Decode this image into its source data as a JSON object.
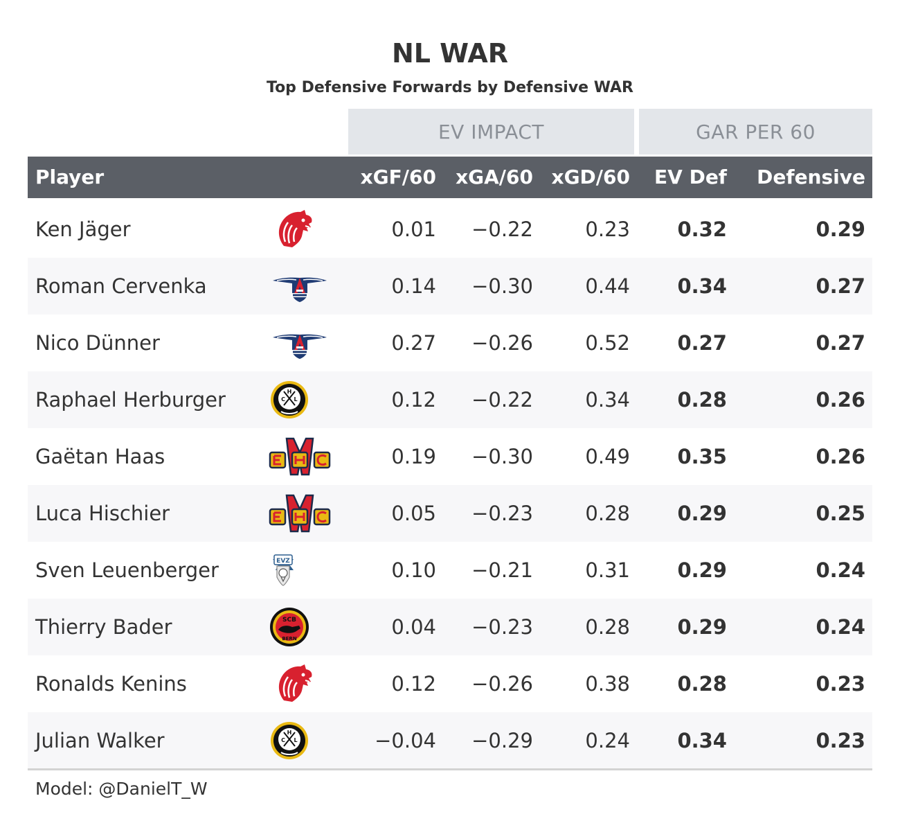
{
  "chart_data": {
    "type": "table",
    "title": "NL WAR",
    "subtitle": "Top Defensive Forwards by Defensive WAR",
    "spanners": [
      "EV IMPACT",
      "GAR PER 60"
    ],
    "columns": [
      "Player",
      "xGF/60",
      "xGA/60",
      "xGD/60",
      "EV Def",
      "Defensive"
    ],
    "rows": [
      {
        "player": "Ken Jäger",
        "team_logo": "lausanne-lion-logo",
        "xgf": "0.01",
        "xga": "−0.22",
        "xgd": "0.23",
        "ev_def": "0.32",
        "defensive": "0.29"
      },
      {
        "player": "Roman Cervenka",
        "team_logo": "rapperswil-lakers-logo",
        "xgf": "0.14",
        "xga": "−0.30",
        "xgd": "0.44",
        "ev_def": "0.34",
        "defensive": "0.27"
      },
      {
        "player": "Nico Dünner",
        "team_logo": "rapperswil-lakers-logo",
        "xgf": "0.27",
        "xga": "−0.26",
        "xgd": "0.52",
        "ev_def": "0.27",
        "defensive": "0.27"
      },
      {
        "player": "Raphael Herburger",
        "team_logo": "hc-lugano-logo",
        "xgf": "0.12",
        "xga": "−0.22",
        "xgd": "0.34",
        "ev_def": "0.28",
        "defensive": "0.26"
      },
      {
        "player": "Gaëtan Haas",
        "team_logo": "ehc-biel-logo",
        "xgf": "0.19",
        "xga": "−0.30",
        "xgd": "0.49",
        "ev_def": "0.35",
        "defensive": "0.26"
      },
      {
        "player": "Luca Hischier",
        "team_logo": "ehc-biel-logo",
        "xgf": "0.05",
        "xga": "−0.23",
        "xgd": "0.28",
        "ev_def": "0.29",
        "defensive": "0.25"
      },
      {
        "player": "Sven Leuenberger",
        "team_logo": "ev-zug-logo",
        "xgf": "0.10",
        "xga": "−0.21",
        "xgd": "0.31",
        "ev_def": "0.29",
        "defensive": "0.24"
      },
      {
        "player": "Thierry Bader",
        "team_logo": "sc-bern-logo",
        "xgf": "0.04",
        "xga": "−0.23",
        "xgd": "0.28",
        "ev_def": "0.29",
        "defensive": "0.24"
      },
      {
        "player": "Ronalds Kenins",
        "team_logo": "lausanne-lion-logo",
        "xgf": "0.12",
        "xga": "−0.26",
        "xgd": "0.38",
        "ev_def": "0.28",
        "defensive": "0.23"
      },
      {
        "player": "Julian Walker",
        "team_logo": "hc-lugano-logo",
        "xgf": "−0.04",
        "xga": "−0.29",
        "xgd": "0.24",
        "ev_def": "0.34",
        "defensive": "0.23"
      }
    ],
    "source_note": "Model: @DanielT_W"
  }
}
